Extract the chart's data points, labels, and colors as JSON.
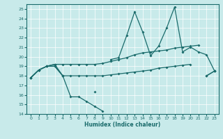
{
  "xlabel": "Humidex (Indice chaleur)",
  "xlim": [
    -0.5,
    23.5
  ],
  "ylim": [
    14,
    25.5
  ],
  "yticks": [
    14,
    15,
    16,
    17,
    18,
    19,
    20,
    21,
    22,
    23,
    24,
    25
  ],
  "xticks": [
    0,
    1,
    2,
    3,
    4,
    5,
    6,
    7,
    8,
    9,
    10,
    11,
    12,
    13,
    14,
    15,
    16,
    17,
    18,
    19,
    20,
    21,
    22,
    23
  ],
  "background_color": "#c8eaea",
  "grid_color": "#ffffff",
  "line_color": "#1a6b6b",
  "line1_y": [
    17.8,
    18.6,
    19.0,
    19.0,
    18.0,
    15.8,
    15.8,
    15.3,
    14.8,
    14.3,
    null,
    null,
    null,
    null,
    null,
    null,
    null,
    null,
    null,
    null,
    null,
    null,
    18.0,
    18.5
  ],
  "line2_y": [
    17.8,
    18.6,
    19.0,
    19.0,
    18.0,
    null,
    null,
    null,
    16.3,
    null,
    19.7,
    19.9,
    22.2,
    24.7,
    22.6,
    20.1,
    21.1,
    23.0,
    25.2,
    20.5,
    21.0,
    20.5,
    20.2,
    18.5
  ],
  "line3_y": [
    17.8,
    18.6,
    19.0,
    19.2,
    19.2,
    19.2,
    19.2,
    19.2,
    19.2,
    19.3,
    19.5,
    19.7,
    19.9,
    20.2,
    20.4,
    20.5,
    20.6,
    20.7,
    20.9,
    21.0,
    21.1,
    21.2,
    null,
    18.5
  ],
  "line4_y": [
    17.8,
    18.6,
    19.0,
    19.2,
    18.0,
    18.0,
    18.0,
    18.0,
    18.0,
    18.0,
    18.1,
    18.2,
    18.3,
    18.4,
    18.5,
    18.6,
    18.8,
    18.9,
    19.0,
    19.1,
    19.2,
    null,
    18.0,
    18.5
  ]
}
